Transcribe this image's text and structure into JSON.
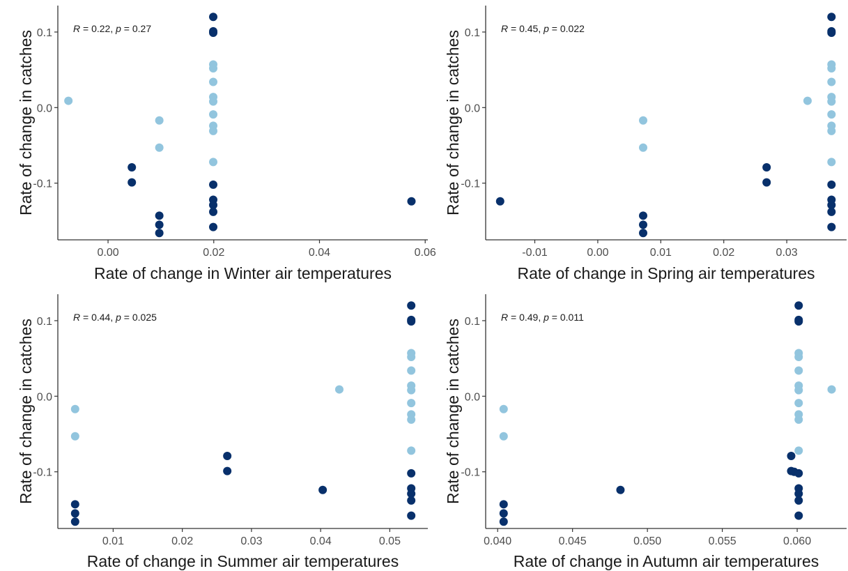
{
  "chart_data": [
    {
      "type": "scatter",
      "xlabel": "Rate of change in Winter air temperatures",
      "ylabel": "Rate of change in catches",
      "annotation": {
        "r_label": "R",
        "r_value": " = 0.22, ",
        "p_label": "p",
        "p_value": " = 0.27"
      },
      "xlim": [
        -0.0095,
        0.0605
      ],
      "ylim": [
        -0.175,
        0.135
      ],
      "xticks": [
        0.0,
        0.02,
        0.04,
        0.06
      ],
      "xtick_labels": [
        "0.00",
        "0.02",
        "0.04",
        "0.06"
      ],
      "yticks": [
        -0.1,
        0.0,
        0.1
      ],
      "ytick_labels": [
        "-0.1",
        "0.0",
        "0.1"
      ],
      "grid": false,
      "legend": "none",
      "points": [
        [
          -0.0075,
          0.009,
          "light"
        ],
        [
          0.0045,
          -0.079,
          "dark"
        ],
        [
          0.0045,
          -0.099,
          "dark"
        ],
        [
          0.0097,
          -0.017,
          "light"
        ],
        [
          0.0097,
          -0.053,
          "light"
        ],
        [
          0.0097,
          -0.143,
          "dark"
        ],
        [
          0.0097,
          -0.155,
          "dark"
        ],
        [
          0.0097,
          -0.166,
          "dark"
        ],
        [
          0.0199,
          0.12,
          "dark"
        ],
        [
          0.0199,
          0.101,
          "dark"
        ],
        [
          0.0199,
          0.099,
          "dark"
        ],
        [
          0.0199,
          0.057,
          "light"
        ],
        [
          0.0199,
          0.052,
          "light"
        ],
        [
          0.0199,
          0.034,
          "light"
        ],
        [
          0.0199,
          0.014,
          "light"
        ],
        [
          0.0199,
          0.008,
          "light"
        ],
        [
          0.0199,
          -0.009,
          "light"
        ],
        [
          0.0199,
          -0.024,
          "light"
        ],
        [
          0.0199,
          -0.031,
          "light"
        ],
        [
          0.0199,
          -0.072,
          "light"
        ],
        [
          0.0199,
          -0.102,
          "dark"
        ],
        [
          0.0199,
          -0.122,
          "dark"
        ],
        [
          0.0199,
          -0.129,
          "dark"
        ],
        [
          0.0199,
          -0.138,
          "dark"
        ],
        [
          0.0199,
          -0.158,
          "dark"
        ],
        [
          0.0574,
          -0.124,
          "dark"
        ]
      ]
    },
    {
      "type": "scatter",
      "xlabel": "Rate of change in Spring air temperatures",
      "ylabel": "Rate of change in catches",
      "annotation": {
        "r_label": "R",
        "r_value": " = 0.45, ",
        "p_label": "p",
        "p_value": " = 0.022"
      },
      "xlim": [
        -0.0178,
        0.0395
      ],
      "ylim": [
        -0.175,
        0.135
      ],
      "xticks": [
        -0.01,
        0.0,
        0.01,
        0.02,
        0.03
      ],
      "xtick_labels": [
        "-0.01",
        "0.00",
        "0.01",
        "0.02",
        "0.03"
      ],
      "yticks": [
        -0.1,
        0.0,
        0.1
      ],
      "ytick_labels": [
        "-0.1",
        "0.0",
        "0.1"
      ],
      "grid": false,
      "legend": "none",
      "points": [
        [
          -0.0155,
          -0.124,
          "dark"
        ],
        [
          0.0072,
          -0.017,
          "light"
        ],
        [
          0.0072,
          -0.053,
          "light"
        ],
        [
          0.0072,
          -0.143,
          "dark"
        ],
        [
          0.0072,
          -0.155,
          "dark"
        ],
        [
          0.0072,
          -0.166,
          "dark"
        ],
        [
          0.0268,
          -0.079,
          "dark"
        ],
        [
          0.0268,
          -0.099,
          "dark"
        ],
        [
          0.0333,
          0.009,
          "light"
        ],
        [
          0.0371,
          0.12,
          "dark"
        ],
        [
          0.0371,
          0.101,
          "dark"
        ],
        [
          0.0371,
          0.099,
          "dark"
        ],
        [
          0.0371,
          0.057,
          "light"
        ],
        [
          0.0371,
          0.052,
          "light"
        ],
        [
          0.0371,
          0.034,
          "light"
        ],
        [
          0.0371,
          0.014,
          "light"
        ],
        [
          0.0371,
          0.008,
          "light"
        ],
        [
          0.0371,
          -0.009,
          "light"
        ],
        [
          0.0371,
          -0.024,
          "light"
        ],
        [
          0.0371,
          -0.031,
          "light"
        ],
        [
          0.0371,
          -0.072,
          "light"
        ],
        [
          0.0371,
          -0.102,
          "dark"
        ],
        [
          0.0371,
          -0.122,
          "dark"
        ],
        [
          0.0371,
          -0.129,
          "dark"
        ],
        [
          0.0371,
          -0.138,
          "dark"
        ],
        [
          0.0371,
          -0.158,
          "dark"
        ]
      ]
    },
    {
      "type": "scatter",
      "xlabel": "Rate of change in Summer air temperatures",
      "ylabel": "Rate of change in catches",
      "annotation": {
        "r_label": "R",
        "r_value": " = 0.44, ",
        "p_label": "p",
        "p_value": " = 0.025"
      },
      "xlim": [
        0.002,
        0.0555
      ],
      "ylim": [
        -0.175,
        0.135
      ],
      "xticks": [
        0.01,
        0.02,
        0.03,
        0.04,
        0.05
      ],
      "xtick_labels": [
        "0.01",
        "0.02",
        "0.03",
        "0.04",
        "0.05"
      ],
      "yticks": [
        -0.1,
        0.0,
        0.1
      ],
      "ytick_labels": [
        "-0.1",
        "0.0",
        "0.1"
      ],
      "grid": false,
      "legend": "none",
      "points": [
        [
          0.0045,
          -0.017,
          "light"
        ],
        [
          0.0045,
          -0.053,
          "light"
        ],
        [
          0.0045,
          -0.143,
          "dark"
        ],
        [
          0.0045,
          -0.155,
          "dark"
        ],
        [
          0.0045,
          -0.166,
          "dark"
        ],
        [
          0.0265,
          -0.079,
          "dark"
        ],
        [
          0.0265,
          -0.099,
          "dark"
        ],
        [
          0.0403,
          -0.124,
          "dark"
        ],
        [
          0.0427,
          0.009,
          "light"
        ],
        [
          0.0531,
          0.12,
          "dark"
        ],
        [
          0.0531,
          0.101,
          "dark"
        ],
        [
          0.0531,
          0.099,
          "dark"
        ],
        [
          0.0531,
          0.057,
          "light"
        ],
        [
          0.0531,
          0.052,
          "light"
        ],
        [
          0.0531,
          0.034,
          "light"
        ],
        [
          0.0531,
          0.014,
          "light"
        ],
        [
          0.0531,
          0.008,
          "light"
        ],
        [
          0.0531,
          -0.009,
          "light"
        ],
        [
          0.0531,
          -0.024,
          "light"
        ],
        [
          0.0531,
          -0.031,
          "light"
        ],
        [
          0.0531,
          -0.072,
          "light"
        ],
        [
          0.0531,
          -0.102,
          "dark"
        ],
        [
          0.0531,
          -0.122,
          "dark"
        ],
        [
          0.0531,
          -0.129,
          "dark"
        ],
        [
          0.0531,
          -0.138,
          "dark"
        ],
        [
          0.0531,
          -0.158,
          "dark"
        ]
      ]
    },
    {
      "type": "scatter",
      "xlabel": "Rate of change in Autumn air temperatures",
      "ylabel": "Rate of change in catches",
      "annotation": {
        "r_label": "R",
        "r_value": " = 0.49, ",
        "p_label": "p",
        "p_value": " = 0.011"
      },
      "xlim": [
        0.0392,
        0.0633
      ],
      "ylim": [
        -0.175,
        0.135
      ],
      "xticks": [
        0.04,
        0.045,
        0.05,
        0.055,
        0.06
      ],
      "xtick_labels": [
        "0.040",
        "0.045",
        "0.050",
        "0.055",
        "0.060"
      ],
      "yticks": [
        -0.1,
        0.0,
        0.1
      ],
      "ytick_labels": [
        "-0.1",
        "0.0",
        "0.1"
      ],
      "grid": false,
      "legend": "none",
      "points": [
        [
          0.0404,
          -0.017,
          "light"
        ],
        [
          0.0404,
          -0.053,
          "light"
        ],
        [
          0.0404,
          -0.143,
          "dark"
        ],
        [
          0.0404,
          -0.155,
          "dark"
        ],
        [
          0.0404,
          -0.166,
          "dark"
        ],
        [
          0.0482,
          -0.124,
          "dark"
        ],
        [
          0.0596,
          -0.079,
          "dark"
        ],
        [
          0.0596,
          -0.099,
          "dark"
        ],
        [
          0.0598,
          -0.1,
          "dark"
        ],
        [
          0.0601,
          0.12,
          "dark"
        ],
        [
          0.0601,
          0.101,
          "dark"
        ],
        [
          0.0601,
          0.099,
          "dark"
        ],
        [
          0.0601,
          0.057,
          "light"
        ],
        [
          0.0601,
          0.052,
          "light"
        ],
        [
          0.0601,
          0.034,
          "light"
        ],
        [
          0.0601,
          0.014,
          "light"
        ],
        [
          0.0601,
          0.008,
          "light"
        ],
        [
          0.0601,
          -0.009,
          "light"
        ],
        [
          0.0601,
          -0.024,
          "light"
        ],
        [
          0.0601,
          -0.031,
          "light"
        ],
        [
          0.0601,
          -0.072,
          "light"
        ],
        [
          0.0601,
          -0.102,
          "dark"
        ],
        [
          0.0601,
          -0.122,
          "dark"
        ],
        [
          0.0601,
          -0.129,
          "dark"
        ],
        [
          0.0601,
          -0.138,
          "dark"
        ],
        [
          0.0601,
          -0.158,
          "dark"
        ],
        [
          0.0623,
          0.009,
          "light"
        ]
      ]
    }
  ],
  "colors": {
    "dark": "#08306b",
    "light": "#92c5de",
    "axis": "#333333",
    "tick_text": "#4d4d4d"
  }
}
